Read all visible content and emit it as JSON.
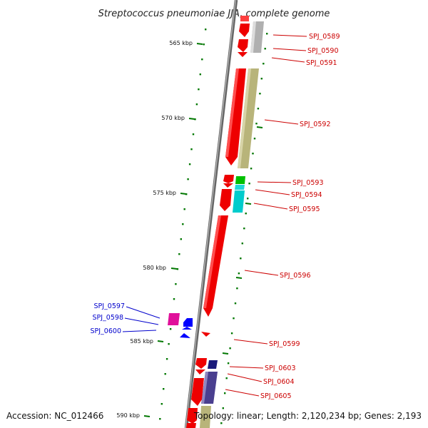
{
  "title": "Streptococcus pneumoniae JJA, complete genome",
  "accession": "Accession: NC_012466",
  "topology": "Topology: linear; Length: 2,120,234 bp; Genes: 2,193",
  "colors": {
    "forward_label": "#cc0000",
    "reverse_label": "#0000cc",
    "tick": "#007700",
    "backbone": "#888888",
    "forward_gene": "#ff0000",
    "reverse_gene": "#0000ff"
  },
  "kbp_labels": [
    "565 kbp",
    "570 kbp",
    "575 kbp",
    "580 kbp",
    "585 kbp",
    "590 kbp"
  ],
  "forward_genes": [
    "SPJ_0589",
    "SPJ_0590",
    "SPJ_0591",
    "SPJ_0592",
    "SPJ_0593",
    "SPJ_0594",
    "SPJ_0595",
    "SPJ_0596",
    "SPJ_0599",
    "SPJ_0603",
    "SPJ_0604",
    "SPJ_0605"
  ],
  "reverse_genes": [
    "SPJ_0597",
    "SPJ_0598",
    "SPJ_0600"
  ]
}
